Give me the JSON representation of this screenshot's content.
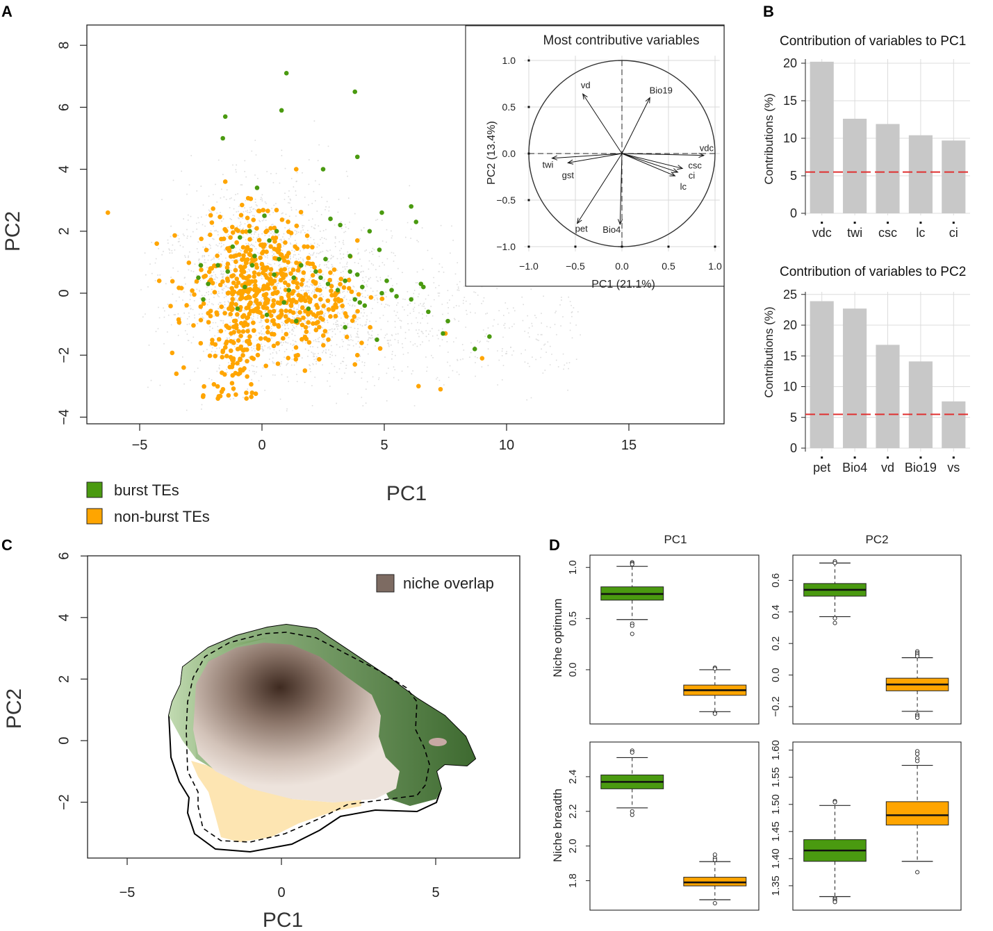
{
  "panel_labels": {
    "a": "A",
    "b": "B",
    "c": "C",
    "d": "D"
  },
  "colors": {
    "burst": "#4a9a10",
    "nonburst": "#ffa500",
    "background_points": "#dcdcdc",
    "bar": "#c8c8c8",
    "threshold": "#e03030",
    "overlap": "#7d6b62"
  },
  "chart_data": [
    {
      "id": "A-scatter",
      "type": "scatter",
      "xlabel": "PC1",
      "ylabel": "PC2",
      "xlim": [
        -7,
        19
      ],
      "ylim": [
        -4.3,
        8.7
      ],
      "xticks": [
        "-5",
        "0",
        "5",
        "10",
        "15"
      ],
      "yticks": [
        "-4",
        "-2",
        "0",
        "2",
        "4",
        "6",
        "8"
      ],
      "legend": [
        {
          "label": "burst TEs",
          "color": "#4a9a10"
        },
        {
          "label": "non-burst TEs",
          "color": "#ffa500"
        }
      ],
      "burst_points": [
        [
          1.0,
          7.1
        ],
        [
          3.8,
          6.5
        ],
        [
          -1.5,
          5.7
        ],
        [
          0.8,
          5.9
        ],
        [
          -1.6,
          5.0
        ],
        [
          3.9,
          4.4
        ],
        [
          2.5,
          4.0
        ],
        [
          -0.2,
          3.4
        ],
        [
          6.1,
          2.8
        ],
        [
          4.9,
          2.6
        ],
        [
          6.3,
          2.3
        ],
        [
          2.8,
          2.4
        ],
        [
          3.2,
          2.2
        ],
        [
          4.4,
          2.0
        ],
        [
          4.8,
          1.4
        ],
        [
          3.6,
          1.2
        ],
        [
          2.6,
          1.1
        ],
        [
          -0.5,
          2.0
        ],
        [
          0.1,
          2.5
        ],
        [
          0.6,
          2.0
        ],
        [
          -0.9,
          1.8
        ],
        [
          0.3,
          1.7
        ],
        [
          -1.2,
          1.5
        ],
        [
          -0.3,
          1.2
        ],
        [
          0.7,
          1.1
        ],
        [
          -1.8,
          0.9
        ],
        [
          1.6,
          0.9
        ],
        [
          2.2,
          0.7
        ],
        [
          -2.5,
          0.9
        ],
        [
          -1.4,
          0.7
        ],
        [
          -0.4,
          0.9
        ],
        [
          0.5,
          0.6
        ],
        [
          1.3,
          0.5
        ],
        [
          -2.6,
          0.5
        ],
        [
          2.4,
          0.5
        ],
        [
          3.6,
          0.7
        ],
        [
          3.9,
          0.6
        ],
        [
          3.4,
          0.4
        ],
        [
          4.1,
          0.2
        ],
        [
          2.7,
          0.3
        ],
        [
          -2.2,
          0.3
        ],
        [
          5.1,
          0.4
        ],
        [
          6.5,
          0.3
        ],
        [
          6.6,
          0.2
        ],
        [
          5.3,
          0.1
        ],
        [
          4.9,
          0.0
        ],
        [
          5.5,
          -0.1
        ],
        [
          3.1,
          0.1
        ],
        [
          3.8,
          -0.2
        ],
        [
          4.2,
          -0.4
        ],
        [
          6.1,
          -0.2
        ],
        [
          0.9,
          -0.3
        ],
        [
          -1.0,
          -0.5
        ],
        [
          6.8,
          -0.6
        ],
        [
          7.6,
          -0.9
        ],
        [
          3.4,
          -1.1
        ],
        [
          1.4,
          -0.9
        ],
        [
          7.4,
          -1.3
        ],
        [
          4.7,
          -1.5
        ],
        [
          9.3,
          -1.4
        ],
        [
          8.7,
          -1.8
        ],
        [
          -0.7,
          0.2
        ],
        [
          1.1,
          0.1
        ],
        [
          0.2,
          -0.7
        ],
        [
          -2.4,
          -0.2
        ],
        [
          4.0,
          -0.3
        ],
        [
          1.9,
          -0.5
        ]
      ]
    },
    {
      "id": "A-inset",
      "type": "scatter",
      "title": "Most contributive variables",
      "xlabel": "PC1 (21.1%)",
      "ylabel": "PC2 (13.4%)",
      "xticks": [
        "-1.0",
        "-0.5",
        "0.0",
        "0.5",
        "1.0"
      ],
      "yticks": [
        "-1.0",
        "-0.5",
        "0.0",
        "0.5",
        "1.0"
      ],
      "xlim": [
        -1.05,
        1.05
      ],
      "ylim": [
        -1.05,
        1.05
      ],
      "arrows": [
        {
          "label": "vd",
          "x": -0.42,
          "y": 0.64
        },
        {
          "label": "Bio19",
          "x": 0.3,
          "y": 0.6
        },
        {
          "label": "twi",
          "x": -0.75,
          "y": -0.05
        },
        {
          "label": "gst",
          "x": -0.58,
          "y": -0.1
        },
        {
          "label": "vdc",
          "x": 0.88,
          "y": -0.02
        },
        {
          "label": "csc",
          "x": 0.65,
          "y": -0.16
        },
        {
          "label": "ci",
          "x": 0.6,
          "y": -0.2
        },
        {
          "label": "lc",
          "x": 0.57,
          "y": -0.24
        },
        {
          "label": "pet",
          "x": -0.48,
          "y": -0.75
        },
        {
          "label": "Bio4",
          "x": -0.02,
          "y": -0.76
        }
      ]
    },
    {
      "id": "B-PC1",
      "type": "bar",
      "title": "Contribution of variables to PC1",
      "ylabel": "Contributions (%)",
      "categories": [
        "vdc",
        "twi",
        "csc",
        "lc",
        "ci"
      ],
      "values": [
        20.2,
        12.6,
        11.9,
        10.4,
        9.7
      ],
      "ylim": [
        0,
        21
      ],
      "yticks": [
        "0",
        "5",
        "10",
        "15",
        "20"
      ],
      "threshold": 5.5
    },
    {
      "id": "B-PC2",
      "type": "bar",
      "title": "Contribution of variables to PC2",
      "ylabel": "Contributions (%)",
      "categories": [
        "pet",
        "Bio4",
        "vd",
        "Bio19",
        "vs"
      ],
      "values": [
        23.9,
        22.7,
        16.8,
        14.1,
        7.6
      ],
      "ylim": [
        0,
        25
      ],
      "yticks": [
        "0",
        "5",
        "10",
        "15",
        "20",
        "25"
      ],
      "threshold": 5.5
    },
    {
      "id": "C-niche",
      "type": "area",
      "xlabel": "PC1",
      "ylabel": "PC2",
      "xticks": [
        "-5",
        "0",
        "5"
      ],
      "yticks": [
        "-2",
        "0",
        "2",
        "4",
        "6"
      ],
      "legend": [
        {
          "label": "niche overlap",
          "color": "#7d6b62"
        }
      ]
    },
    {
      "id": "D-boxplots",
      "type": "box",
      "columns": [
        "PC1",
        "PC2"
      ],
      "rows": [
        "Niche optimum",
        "Niche breadth"
      ],
      "panels": [
        {
          "col": "PC1",
          "row": "Niche optimum",
          "yticks": [
            "0.0",
            "0.5",
            "1.0"
          ],
          "burst": {
            "min": 0.49,
            "q1": 0.68,
            "median": 0.74,
            "q3": 0.81,
            "max": 1.01,
            "outliers": [
              1.05,
              1.04,
              1.03,
              0.45,
              0.43,
              0.35
            ]
          },
          "nonburst": {
            "min": -0.41,
            "q1": -0.25,
            "median": -0.2,
            "q3": -0.15,
            "max": 0.0,
            "outliers": [
              0.02,
              0.01,
              -0.42,
              -0.43
            ]
          }
        },
        {
          "col": "PC2",
          "row": "Niche optimum",
          "yticks": [
            "-0.2",
            "0.0",
            "0.2",
            "0.4",
            "0.6"
          ],
          "burst": {
            "min": 0.37,
            "q1": 0.5,
            "median": 0.54,
            "q3": 0.58,
            "max": 0.71,
            "outliers": [
              0.72,
              0.71,
              0.36,
              0.33
            ]
          },
          "nonburst": {
            "min": -0.23,
            "q1": -0.1,
            "median": -0.06,
            "q3": -0.02,
            "max": 0.11,
            "outliers": [
              0.15,
              0.14,
              0.13,
              0.12,
              -0.25,
              -0.26,
              -0.27
            ]
          }
        },
        {
          "col": "PC1",
          "row": "Niche breadth",
          "yticks": [
            "1.8",
            "2.0",
            "2.2",
            "2.4"
          ],
          "burst": {
            "min": 2.22,
            "q1": 2.33,
            "median": 2.37,
            "q3": 2.41,
            "max": 2.51,
            "outliers": [
              2.55,
              2.54,
              2.2,
              2.18
            ]
          },
          "nonburst": {
            "min": 1.69,
            "q1": 1.77,
            "median": 1.79,
            "q3": 1.82,
            "max": 1.91,
            "outliers": [
              1.95,
              1.93,
              1.92,
              1.67
            ]
          }
        },
        {
          "col": "PC2",
          "row": "Niche breadth",
          "yticks": [
            "1.35",
            "1.40",
            "1.45",
            "1.50",
            "1.55",
            "1.60"
          ],
          "burst": {
            "min": 1.33,
            "q1": 1.395,
            "median": 1.415,
            "q3": 1.435,
            "max": 1.498,
            "outliers": [
              1.506,
              1.504,
              1.327,
              1.325,
              1.322,
              1.32
            ]
          },
          "nonburst": {
            "min": 1.395,
            "q1": 1.462,
            "median": 1.48,
            "q3": 1.505,
            "max": 1.572,
            "outliers": [
              1.598,
              1.593,
              1.585,
              1.58,
              1.375
            ]
          }
        }
      ]
    }
  ]
}
